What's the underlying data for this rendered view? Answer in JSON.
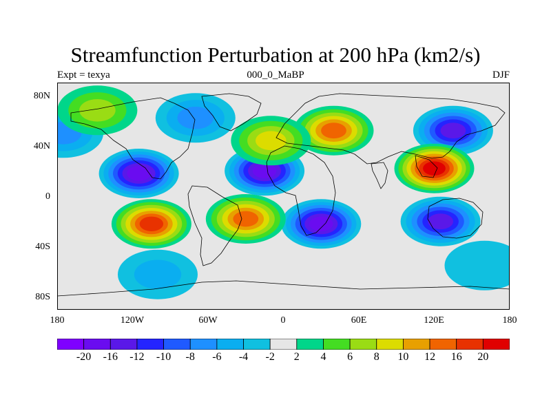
{
  "title": "Streamfunction Perturbation at 200 hPa (km2/s)",
  "subtitle": {
    "left": "Expt = texya",
    "center": "000_0_MaBP",
    "right": "DJF"
  },
  "map": {
    "projection": "cylindrical-equidistant",
    "lon_range": [
      -180,
      180
    ],
    "lat_range": [
      -90,
      90
    ],
    "background_color": "#e6e6e6",
    "y_ticks": [
      "80N",
      "40N",
      "0",
      "40S",
      "80S"
    ],
    "x_ticks": [
      "180",
      "120W",
      "60W",
      "0",
      "60E",
      "120E",
      "180"
    ]
  },
  "colorbar": {
    "levels": [
      "-20",
      "-16",
      "-12",
      "-10",
      "-8",
      "-6",
      "-4",
      "-2",
      "2",
      "4",
      "6",
      "8",
      "10",
      "12",
      "16",
      "20"
    ],
    "colors": [
      "#7f00ff",
      "#6a0cf0",
      "#5a18e8",
      "#2424ff",
      "#1f5aff",
      "#1e90ff",
      "#0aaef0",
      "#10c0e0",
      "#e6e6e6",
      "#00d68a",
      "#44dd22",
      "#9adc14",
      "#dcdc00",
      "#e8a000",
      "#f06400",
      "#e83200",
      "#e00000"
    ]
  },
  "fields": [
    {
      "type": "low",
      "lon": -115,
      "lat": 18,
      "peak": -18
    },
    {
      "type": "low",
      "lon": -15,
      "lat": 20,
      "peak": -20
    },
    {
      "type": "low",
      "lon": 30,
      "lat": -22,
      "peak": -18
    },
    {
      "type": "low",
      "lon": 125,
      "lat": -20,
      "peak": -14
    },
    {
      "type": "low",
      "lon": 135,
      "lat": 52,
      "peak": -16
    },
    {
      "type": "low",
      "lon": -70,
      "lat": 62,
      "peak": -8
    },
    {
      "type": "low",
      "lon": -175,
      "lat": 50,
      "peak": -8
    },
    {
      "type": "low",
      "lon": -100,
      "lat": -62,
      "peak": -6
    },
    {
      "type": "low",
      "lon": 160,
      "lat": -55,
      "peak": -4
    },
    {
      "type": "high",
      "lon": 120,
      "lat": 22,
      "peak": 20
    },
    {
      "type": "high",
      "lon": -105,
      "lat": -22,
      "peak": 16
    },
    {
      "type": "high",
      "lon": -30,
      "lat": -18,
      "peak": 14
    },
    {
      "type": "high",
      "lon": 40,
      "lat": 52,
      "peak": 12
    },
    {
      "type": "high",
      "lon": -10,
      "lat": 44,
      "peak": 8
    },
    {
      "type": "high",
      "lon": -148,
      "lat": 68,
      "peak": 6
    }
  ]
}
